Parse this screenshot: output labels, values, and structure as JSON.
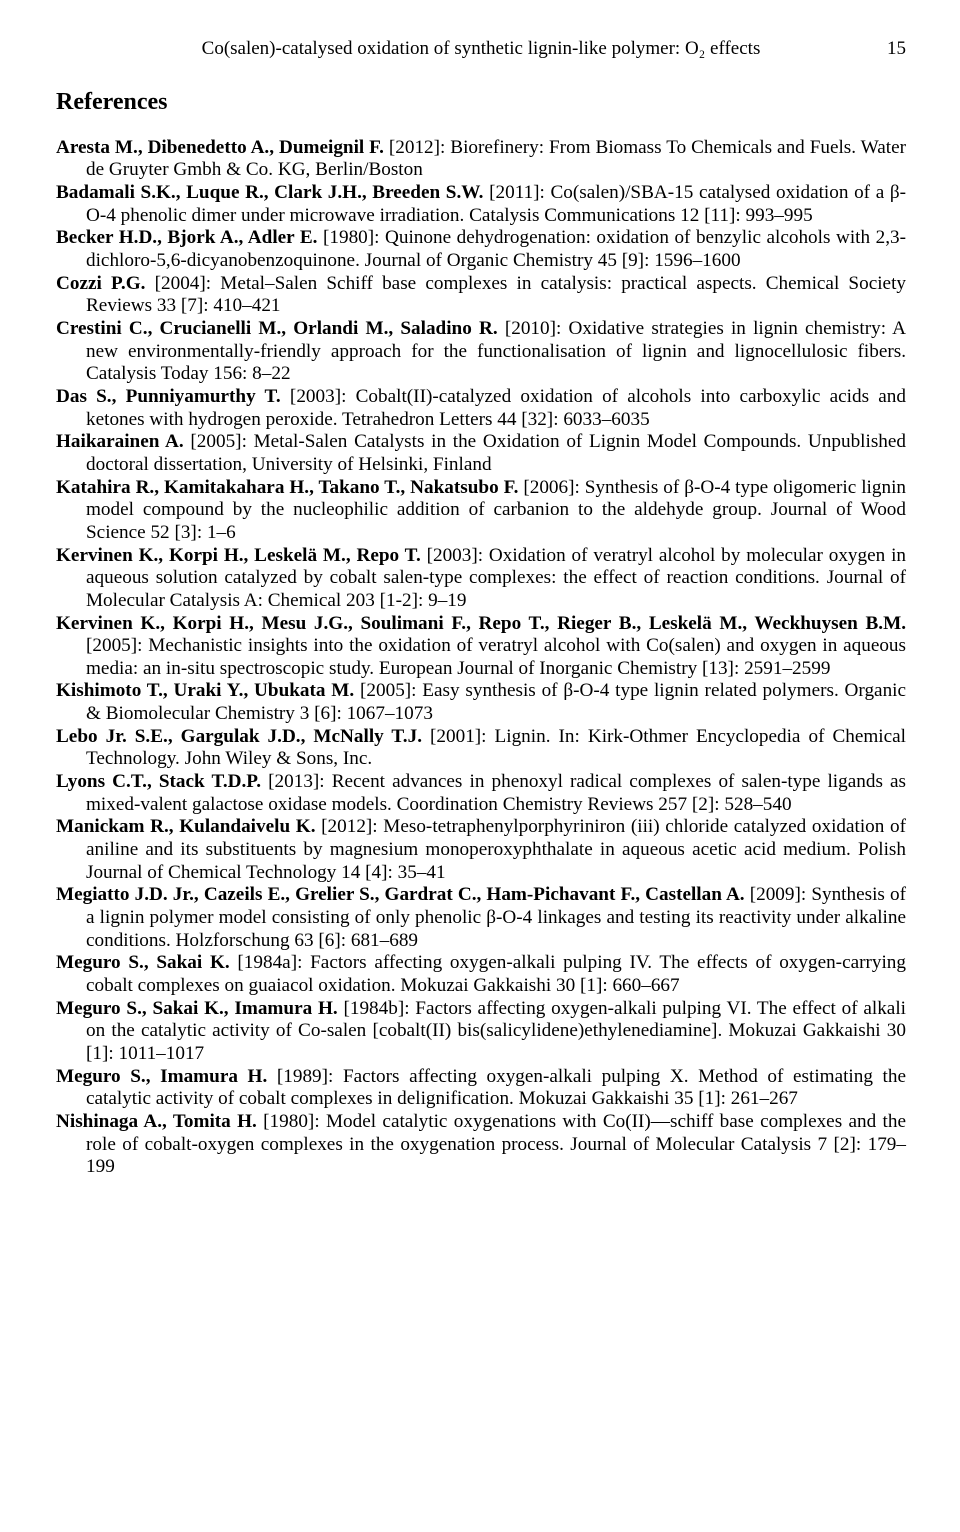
{
  "header": {
    "running_title": "Co(salen)-catalysed oxidation of synthetic lignin-like polymer: O₂ effects",
    "page_number": "15"
  },
  "section_title": "References",
  "references": [
    {
      "authors": "Aresta M., Dibenedetto A., Dumeignil F.",
      "rest": " [2012]: Biorefinery: From Biomass To Chemicals and Fuels. Water de Gruyter Gmbh & Co. KG, Berlin/Boston"
    },
    {
      "authors": "Badamali S.K., Luque R., Clark J.H., Breeden S.W.",
      "rest": " [2011]: Co(salen)/SBA-15 catalysed oxidation of a β-O-4 phenolic dimer under microwave irradiation. Catalysis Communications 12 [11]: 993–995"
    },
    {
      "authors": "Becker H.D., Bjork A., Adler E.",
      "rest": " [1980]: Quinone dehydrogenation: oxidation of benzylic alcohols with 2,3-dichloro-5,6-dicyanobenzoquinone. Journal of Organic Chemistry 45 [9]: 1596–1600"
    },
    {
      "authors": "Cozzi P.G.",
      "rest": " [2004]: Metal–Salen Schiff base complexes in catalysis: practical aspects. Chemical Society Reviews 33 [7]: 410–421"
    },
    {
      "authors": "Crestini C., Crucianelli M., Orlandi M., Saladino R.",
      "rest": " [2010]: Oxidative strategies in lignin chemistry: A new environmentally-friendly approach for the functionalisation of lignin and lignocellulosic fibers. Catalysis Today 156: 8–22"
    },
    {
      "authors": "Das S., Punniyamurthy T.",
      "rest": " [2003]: Cobalt(II)-catalyzed oxidation of alcohols into carboxylic acids and ketones with hydrogen peroxide. Tetrahedron Letters 44 [32]: 6033–6035"
    },
    {
      "authors": "Haikarainen A.",
      "rest": " [2005]: Metal-Salen Catalysts in the Oxidation of Lignin Model Compounds. Unpublished doctoral dissertation, University of Helsinki, Finland"
    },
    {
      "authors": "Katahira R., Kamitakahara H., Takano T., Nakatsubo F.",
      "rest": " [2006]: Synthesis of β-O-4 type oligomeric lignin model compound by the nucleophilic addition of carbanion to the aldehyde group. Journal of Wood Science 52 [3]: 1–6"
    },
    {
      "authors": "Kervinen K., Korpi H., Leskelä M., Repo T.",
      "rest": " [2003]: Oxidation of veratryl alcohol by molecular oxygen in aqueous solution catalyzed by cobalt salen-type complexes: the effect of reaction conditions. Journal of Molecular Catalysis A: Chemical 203 [1-2]: 9–19"
    },
    {
      "authors": "Kervinen K., Korpi H., Mesu J.G., Soulimani F., Repo T., Rieger B., Leskelä M., Weckhuysen B.M.",
      "rest": " [2005]: Mechanistic insights into the oxidation of veratryl alcohol with Co(salen) and oxygen in aqueous media: an in-situ spectroscopic study. European Journal of Inorganic Chemistry [13]: 2591–2599"
    },
    {
      "authors": "Kishimoto T., Uraki Y., Ubukata M.",
      "rest": " [2005]: Easy synthesis of β-O-4 type lignin related polymers. Organic & Biomolecular Chemistry 3 [6]: 1067–1073"
    },
    {
      "authors": "Lebo Jr. S.E., Gargulak J.D., McNally T.J.",
      "rest": " [2001]: Lignin. In: Kirk-Othmer Encyclopedia of Chemical Technology. John Wiley & Sons, Inc."
    },
    {
      "authors": "Lyons C.T., Stack T.D.P.",
      "rest": " [2013]: Recent advances in phenoxyl radical complexes of salen-type ligands as mixed-valent galactose oxidase models. Coordination Chemistry Reviews 257 [2]: 528–540"
    },
    {
      "authors": "Manickam R., Kulandaivelu K.",
      "rest": " [2012]: Meso-tetraphenylporphyriniron (iii) chloride catalyzed oxidation of aniline and its substituents by magnesium monoperoxyphthalate in aqueous acetic acid medium. Polish Journal of Chemical Technology 14 [4]: 35–41"
    },
    {
      "authors": "Megiatto J.D. Jr., Cazeils E., Grelier S., Gardrat C., Ham-Pichavant F., Castellan A.",
      "rest": " [2009]: Synthesis of a lignin polymer model consisting of only phenolic β-O-4 linkages and testing its reactivity under alkaline conditions. Holzforschung 63 [6]: 681–689"
    },
    {
      "authors": "Meguro S., Sakai K.",
      "rest": " [1984a]: Factors affecting oxygen-alkali pulping IV. The effects of oxygen-carrying cobalt complexes on guaiacol oxidation. Mokuzai Gakkaishi 30 [1]: 660–667"
    },
    {
      "authors": "Meguro S., Sakai K., Imamura H.",
      "rest": " [1984b]: Factors affecting oxygen-alkali pulping VI. The effect of alkali on the catalytic activity of Co-salen [cobalt(II) bis(salicylidene)ethylenediamine]. Mokuzai Gakkaishi 30 [1]: 1011–1017"
    },
    {
      "authors": "Meguro S., Imamura H.",
      "rest": " [1989]: Factors affecting oxygen-alkali pulping X. Method of estimating the catalytic activity of cobalt complexes in delignification. Mokuzai Gakkaishi 35 [1]: 261–267"
    },
    {
      "authors": "Nishinaga A., Tomita H.",
      "rest": " [1980]: Model catalytic oxygenations with Co(II)—schiff base complexes and the role of cobalt-oxygen complexes in the oxygenation process. Journal of Molecular Catalysis 7 [2]: 179–199"
    }
  ]
}
